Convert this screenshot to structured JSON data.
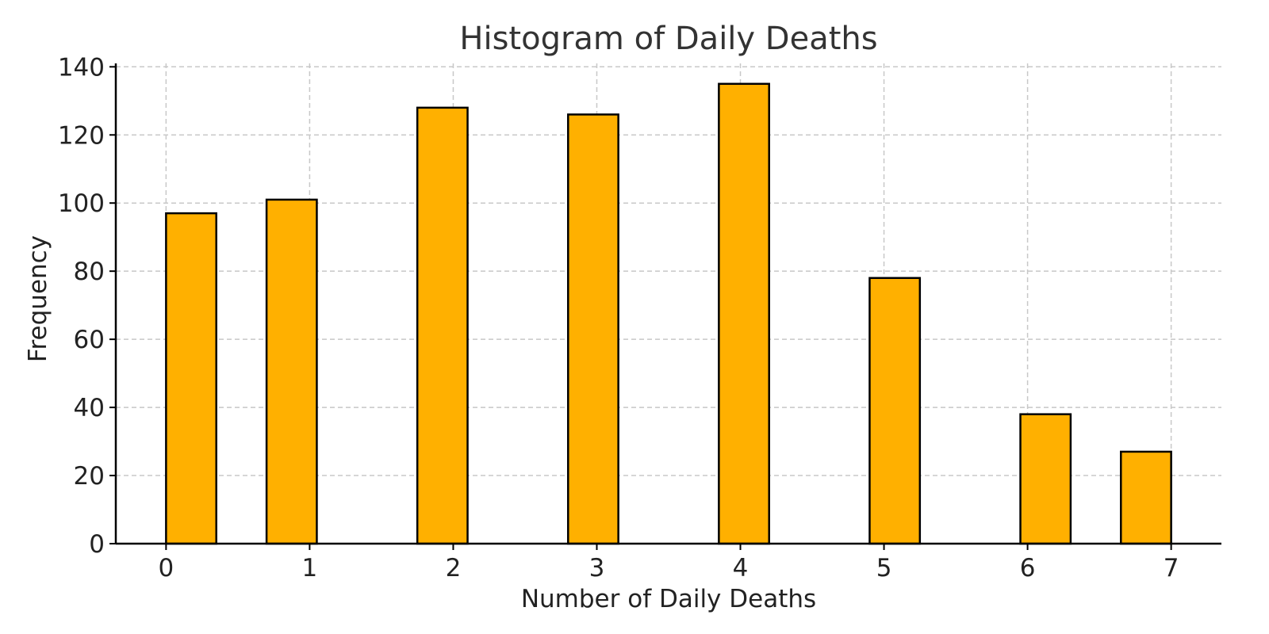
{
  "chart_data": {
    "type": "bar",
    "title": "Histogram of Daily Deaths",
    "xlabel": "Number of Daily Deaths",
    "ylabel": "Frequency",
    "bins": [
      {
        "start": 0.0,
        "end": 0.35,
        "count": 97
      },
      {
        "start": 0.7,
        "end": 1.05,
        "count": 101
      },
      {
        "start": 1.75,
        "end": 2.1,
        "count": 128
      },
      {
        "start": 2.8,
        "end": 3.15,
        "count": 126
      },
      {
        "start": 3.85,
        "end": 4.2,
        "count": 135
      },
      {
        "start": 4.9,
        "end": 5.25,
        "count": 78
      },
      {
        "start": 5.95,
        "end": 6.3,
        "count": 38
      },
      {
        "start": 6.65,
        "end": 7.0,
        "count": 27
      }
    ],
    "x_ticks": [
      "0",
      "1",
      "2",
      "3",
      "4",
      "5",
      "6",
      "7"
    ],
    "y_ticks": [
      "0",
      "20",
      "40",
      "60",
      "80",
      "100",
      "120",
      "140"
    ],
    "xlim": [
      -0.35,
      7.35
    ],
    "ylim": [
      0,
      141
    ],
    "grid": true,
    "bar_color": "#FFB000",
    "edge_color": "#000000",
    "grid_color": "#c8c8c8"
  }
}
